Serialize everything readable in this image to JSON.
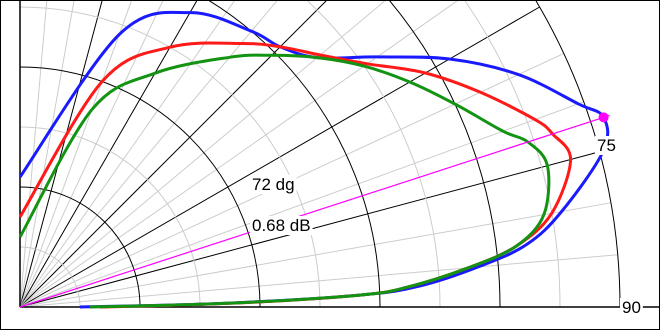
{
  "chart_data": {
    "type": "polar-line",
    "title": "",
    "angle_ticks": [
      "75",
      "90"
    ],
    "angle_range_deg": [
      0,
      90
    ],
    "radius_range_db": [
      -30,
      0
    ],
    "marker": {
      "angle_label": "72 dg",
      "value_label": "0.68 dB",
      "angle_deg": 72,
      "value_db": 0.68,
      "color": "#ff00ff"
    },
    "colors": {
      "grid_major": "#000000",
      "grid_minor": "#cccccc",
      "blue": "#1a1aff",
      "red": "#ff1a1a",
      "green": "#129312"
    },
    "series": [
      {
        "color": "blue",
        "angles": [
          0,
          20,
          30,
          40,
          45,
          50,
          55,
          60,
          65,
          70,
          72,
          75,
          80,
          83,
          85,
          87,
          88,
          89,
          90
        ],
        "values": [
          -23.5,
          -15.5,
          -13,
          -12,
          -11.6,
          -10.6,
          -8.2,
          -5.2,
          -2.5,
          -0.3,
          0.68,
          0.2,
          -2.5,
          -4.5,
          -7,
          -10,
          -13,
          -20,
          -27
        ]
      },
      {
        "color": "red",
        "angles": [
          0,
          20,
          30,
          40,
          45,
          50,
          55,
          60,
          65,
          70,
          72,
          75,
          80,
          83,
          85,
          87,
          88,
          89,
          90
        ],
        "values": [
          -25.5,
          -18,
          -15,
          -12.8,
          -11.6,
          -10.4,
          -8.8,
          -6.6,
          -4.6,
          -2.6,
          -2,
          -1.5,
          -3,
          -5,
          -7.5,
          -10.5,
          -13,
          -19.5,
          -26
        ]
      },
      {
        "color": "green",
        "angles": [
          0,
          20,
          30,
          40,
          45,
          50,
          55,
          60,
          65,
          70,
          72,
          75,
          80,
          83,
          85,
          87,
          88,
          89,
          90
        ],
        "values": [
          -26.5,
          -19.5,
          -16.5,
          -13.7,
          -12.2,
          -10.6,
          -9,
          -7.5,
          -6,
          -4.3,
          -3.3,
          -2.7,
          -3.4,
          -5,
          -7.5,
          -10.5,
          -13,
          -19.8,
          -26.5
        ]
      }
    ]
  }
}
